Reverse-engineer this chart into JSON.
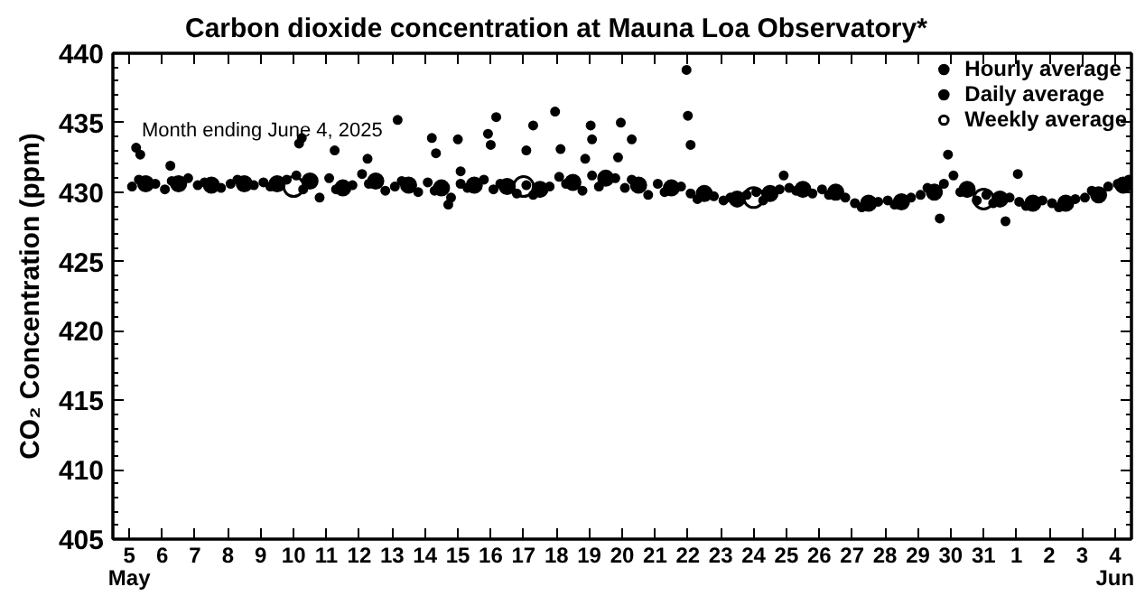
{
  "chart_data": {
    "type": "scatter",
    "title": "Carbon dioxide concentration at Mauna Loa Observatory*",
    "ylabel": "CO₂ Concentration (ppm)",
    "annotations": [
      "Month ending June 4, 2025"
    ],
    "xlim": [
      "2025-05-04T12:00",
      "2025-06-04T12:00"
    ],
    "xticks": [
      {
        "value": "2025-05-05",
        "label": "5\nMay"
      },
      {
        "value": "2025-05-06",
        "label": "6"
      },
      {
        "value": "2025-05-07",
        "label": "7"
      },
      {
        "value": "2025-05-08",
        "label": "8"
      },
      {
        "value": "2025-05-09",
        "label": "9"
      },
      {
        "value": "2025-05-10",
        "label": "10"
      },
      {
        "value": "2025-05-11",
        "label": "11"
      },
      {
        "value": "2025-05-12",
        "label": "12"
      },
      {
        "value": "2025-05-13",
        "label": "13"
      },
      {
        "value": "2025-05-14",
        "label": "14"
      },
      {
        "value": "2025-05-15",
        "label": "15"
      },
      {
        "value": "2025-05-16",
        "label": "16"
      },
      {
        "value": "2025-05-17",
        "label": "17"
      },
      {
        "value": "2025-05-18",
        "label": "18"
      },
      {
        "value": "2025-05-19",
        "label": "19"
      },
      {
        "value": "2025-05-20",
        "label": "20"
      },
      {
        "value": "2025-05-21",
        "label": "21"
      },
      {
        "value": "2025-05-22",
        "label": "22"
      },
      {
        "value": "2025-05-23",
        "label": "23"
      },
      {
        "value": "2025-05-24",
        "label": "24"
      },
      {
        "value": "2025-05-25",
        "label": "25"
      },
      {
        "value": "2025-05-26",
        "label": "26"
      },
      {
        "value": "2025-05-27",
        "label": "27"
      },
      {
        "value": "2025-05-28",
        "label": "28"
      },
      {
        "value": "2025-05-29",
        "label": "29"
      },
      {
        "value": "2025-05-30",
        "label": "30"
      },
      {
        "value": "2025-05-31",
        "label": "31"
      },
      {
        "value": "2025-06-01",
        "label": "1"
      },
      {
        "value": "2025-06-02",
        "label": "2"
      },
      {
        "value": "2025-06-03",
        "label": "3"
      },
      {
        "value": "2025-06-04",
        "label": "4\nJun"
      }
    ],
    "ylim": [
      405,
      440
    ],
    "yticks": [
      405,
      410,
      415,
      420,
      425,
      430,
      435,
      440
    ],
    "grid": false,
    "legend": "top right",
    "marker": "circle",
    "series": [
      {
        "name": "Hourly average",
        "color": "#000000",
        "x": [
          "2025-05-05T02:00",
          "2025-05-05T07:00",
          "2025-05-05T19:00",
          "2025-05-06T02:00",
          "2025-05-06T07:00",
          "2025-05-06T19:00",
          "2025-05-07T02:00",
          "2025-05-07T07:00",
          "2025-05-07T19:00",
          "2025-05-08T02:00",
          "2025-05-08T07:00",
          "2025-05-08T19:00",
          "2025-05-09T02:00",
          "2025-05-09T07:00",
          "2025-05-09T19:00",
          "2025-05-10T02:00",
          "2025-05-10T07:00",
          "2025-05-10T19:00",
          "2025-05-11T02:00",
          "2025-05-11T07:00",
          "2025-05-11T19:00",
          "2025-05-12T02:00",
          "2025-05-12T07:00",
          "2025-05-12T19:00",
          "2025-05-13T02:00",
          "2025-05-13T07:00",
          "2025-05-13T19:00",
          "2025-05-14T02:00",
          "2025-05-14T07:00",
          "2025-05-14T19:00",
          "2025-05-15T02:00",
          "2025-05-15T07:00",
          "2025-05-15T19:00",
          "2025-05-16T02:00",
          "2025-05-16T07:00",
          "2025-05-16T19:00",
          "2025-05-17T02:00",
          "2025-05-17T07:00",
          "2025-05-17T19:00",
          "2025-05-18T02:00",
          "2025-05-18T07:00",
          "2025-05-18T19:00",
          "2025-05-19T02:00",
          "2025-05-19T07:00",
          "2025-05-19T19:00",
          "2025-05-20T02:00",
          "2025-05-20T07:00",
          "2025-05-20T19:00",
          "2025-05-21T02:00",
          "2025-05-21T07:00",
          "2025-05-21T19:00",
          "2025-05-22T02:00",
          "2025-05-22T07:00",
          "2025-05-22T19:00",
          "2025-05-23T02:00",
          "2025-05-23T07:00",
          "2025-05-23T19:00",
          "2025-05-24T02:00",
          "2025-05-24T07:00",
          "2025-05-24T19:00",
          "2025-05-25T02:00",
          "2025-05-25T07:00",
          "2025-05-25T19:00",
          "2025-05-26T02:00",
          "2025-05-26T07:00",
          "2025-05-26T19:00",
          "2025-05-27T02:00",
          "2025-05-27T07:00",
          "2025-05-27T19:00",
          "2025-05-28T02:00",
          "2025-05-28T07:00",
          "2025-05-28T19:00",
          "2025-05-29T02:00",
          "2025-05-29T07:00",
          "2025-05-29T19:00",
          "2025-05-30T02:00",
          "2025-05-30T07:00",
          "2025-05-30T19:00",
          "2025-05-31T02:00",
          "2025-05-31T07:00",
          "2025-05-31T19:00",
          "2025-06-01T02:00",
          "2025-06-01T07:00",
          "2025-06-01T19:00",
          "2025-06-02T02:00",
          "2025-06-02T07:00",
          "2025-06-02T19:00",
          "2025-06-03T02:00",
          "2025-06-03T07:00",
          "2025-06-03T19:00",
          "2025-06-04T02:00",
          "2025-06-04T10:00",
          "2025-05-05T05:00",
          "2025-05-05T08:00",
          "2025-05-06T06:00",
          "2025-05-10T04:00",
          "2025-05-10T06:00",
          "2025-05-11T06:00",
          "2025-05-12T06:00",
          "2025-05-13T04:00",
          "2025-05-14T05:00",
          "2025-05-14T08:00",
          "2025-05-14T17:00",
          "2025-05-15T00:00",
          "2025-05-15T02:00",
          "2025-05-15T22:00",
          "2025-05-16T00:00",
          "2025-05-16T04:00",
          "2025-05-17T02:00",
          "2025-05-17T07:00",
          "2025-05-17T23:00",
          "2025-05-18T03:00",
          "2025-05-18T21:00",
          "2025-05-19T01:00",
          "2025-05-19T02:00",
          "2025-05-19T21:00",
          "2025-05-19T23:00",
          "2025-05-20T07:00",
          "2025-05-21T23:00",
          "2025-05-22T00:00",
          "2025-05-22T02:00",
          "2025-05-24T22:00",
          "2025-05-29T16:00",
          "2025-05-29T22:00",
          "2025-05-31T16:00",
          "2025-06-01T01:00"
        ],
        "values": [
          430.4,
          430.9,
          430.6,
          430.2,
          430.8,
          431.0,
          430.5,
          430.7,
          430.3,
          430.6,
          430.9,
          430.5,
          430.7,
          430.4,
          430.9,
          431.2,
          430.2,
          429.6,
          431.0,
          430.2,
          430.5,
          431.3,
          430.6,
          430.1,
          430.4,
          430.8,
          430.0,
          430.7,
          430.1,
          429.6,
          430.6,
          430.3,
          430.9,
          430.2,
          430.6,
          429.9,
          430.5,
          429.8,
          430.4,
          431.1,
          430.6,
          430.1,
          431.2,
          430.4,
          431.0,
          430.3,
          430.9,
          429.8,
          430.6,
          430.0,
          430.4,
          429.9,
          429.5,
          429.7,
          429.4,
          429.6,
          429.8,
          430.0,
          429.4,
          430.2,
          430.3,
          430.1,
          429.9,
          430.2,
          429.8,
          429.6,
          429.2,
          428.9,
          429.3,
          429.4,
          429.1,
          429.6,
          429.8,
          430.3,
          430.6,
          431.2,
          430.0,
          429.4,
          429.8,
          429.2,
          429.6,
          429.3,
          429.0,
          429.4,
          429.2,
          428.9,
          429.5,
          429.6,
          430.1,
          430.4,
          430.6,
          430.9,
          433.2,
          432.7,
          431.9,
          433.5,
          433.9,
          433.0,
          432.4,
          435.2,
          433.9,
          432.8,
          429.1,
          433.8,
          431.5,
          434.2,
          433.4,
          435.4,
          433.0,
          434.8,
          435.8,
          433.1,
          432.4,
          434.8,
          433.8,
          432.5,
          435.0,
          433.8,
          438.8,
          435.5,
          433.4,
          431.2,
          428.1,
          432.7,
          427.9,
          431.3
        ]
      },
      {
        "name": "Daily average",
        "color": "#000000",
        "x": [
          "2025-05-05T12:00",
          "2025-05-06T12:00",
          "2025-05-07T12:00",
          "2025-05-08T12:00",
          "2025-05-09T12:00",
          "2025-05-10T12:00",
          "2025-05-11T12:00",
          "2025-05-12T12:00",
          "2025-05-13T12:00",
          "2025-05-14T12:00",
          "2025-05-15T12:00",
          "2025-05-16T12:00",
          "2025-05-17T12:00",
          "2025-05-18T12:00",
          "2025-05-19T12:00",
          "2025-05-20T12:00",
          "2025-05-21T12:00",
          "2025-05-22T12:00",
          "2025-05-23T12:00",
          "2025-05-24T12:00",
          "2025-05-25T12:00",
          "2025-05-26T12:00",
          "2025-05-27T12:00",
          "2025-05-28T12:00",
          "2025-05-29T12:00",
          "2025-05-30T12:00",
          "2025-05-31T12:00",
          "2025-06-01T12:00",
          "2025-06-02T12:00",
          "2025-06-03T12:00",
          "2025-06-04T06:00"
        ],
        "values": [
          430.6,
          430.6,
          430.5,
          430.6,
          430.6,
          430.8,
          430.3,
          430.8,
          430.5,
          430.3,
          430.5,
          430.4,
          430.2,
          430.7,
          431.0,
          430.5,
          430.3,
          429.9,
          429.5,
          429.9,
          430.2,
          430.0,
          429.2,
          429.3,
          430.0,
          430.2,
          429.5,
          429.2,
          429.2,
          429.8,
          430.5
        ]
      },
      {
        "name": "Weekly average",
        "color": "#000000",
        "x": [
          "2025-05-10T00:00",
          "2025-05-17T00:00",
          "2025-05-24T00:00",
          "2025-05-31T00:00"
        ],
        "values": [
          430.4,
          430.4,
          429.6,
          429.5
        ]
      }
    ]
  }
}
